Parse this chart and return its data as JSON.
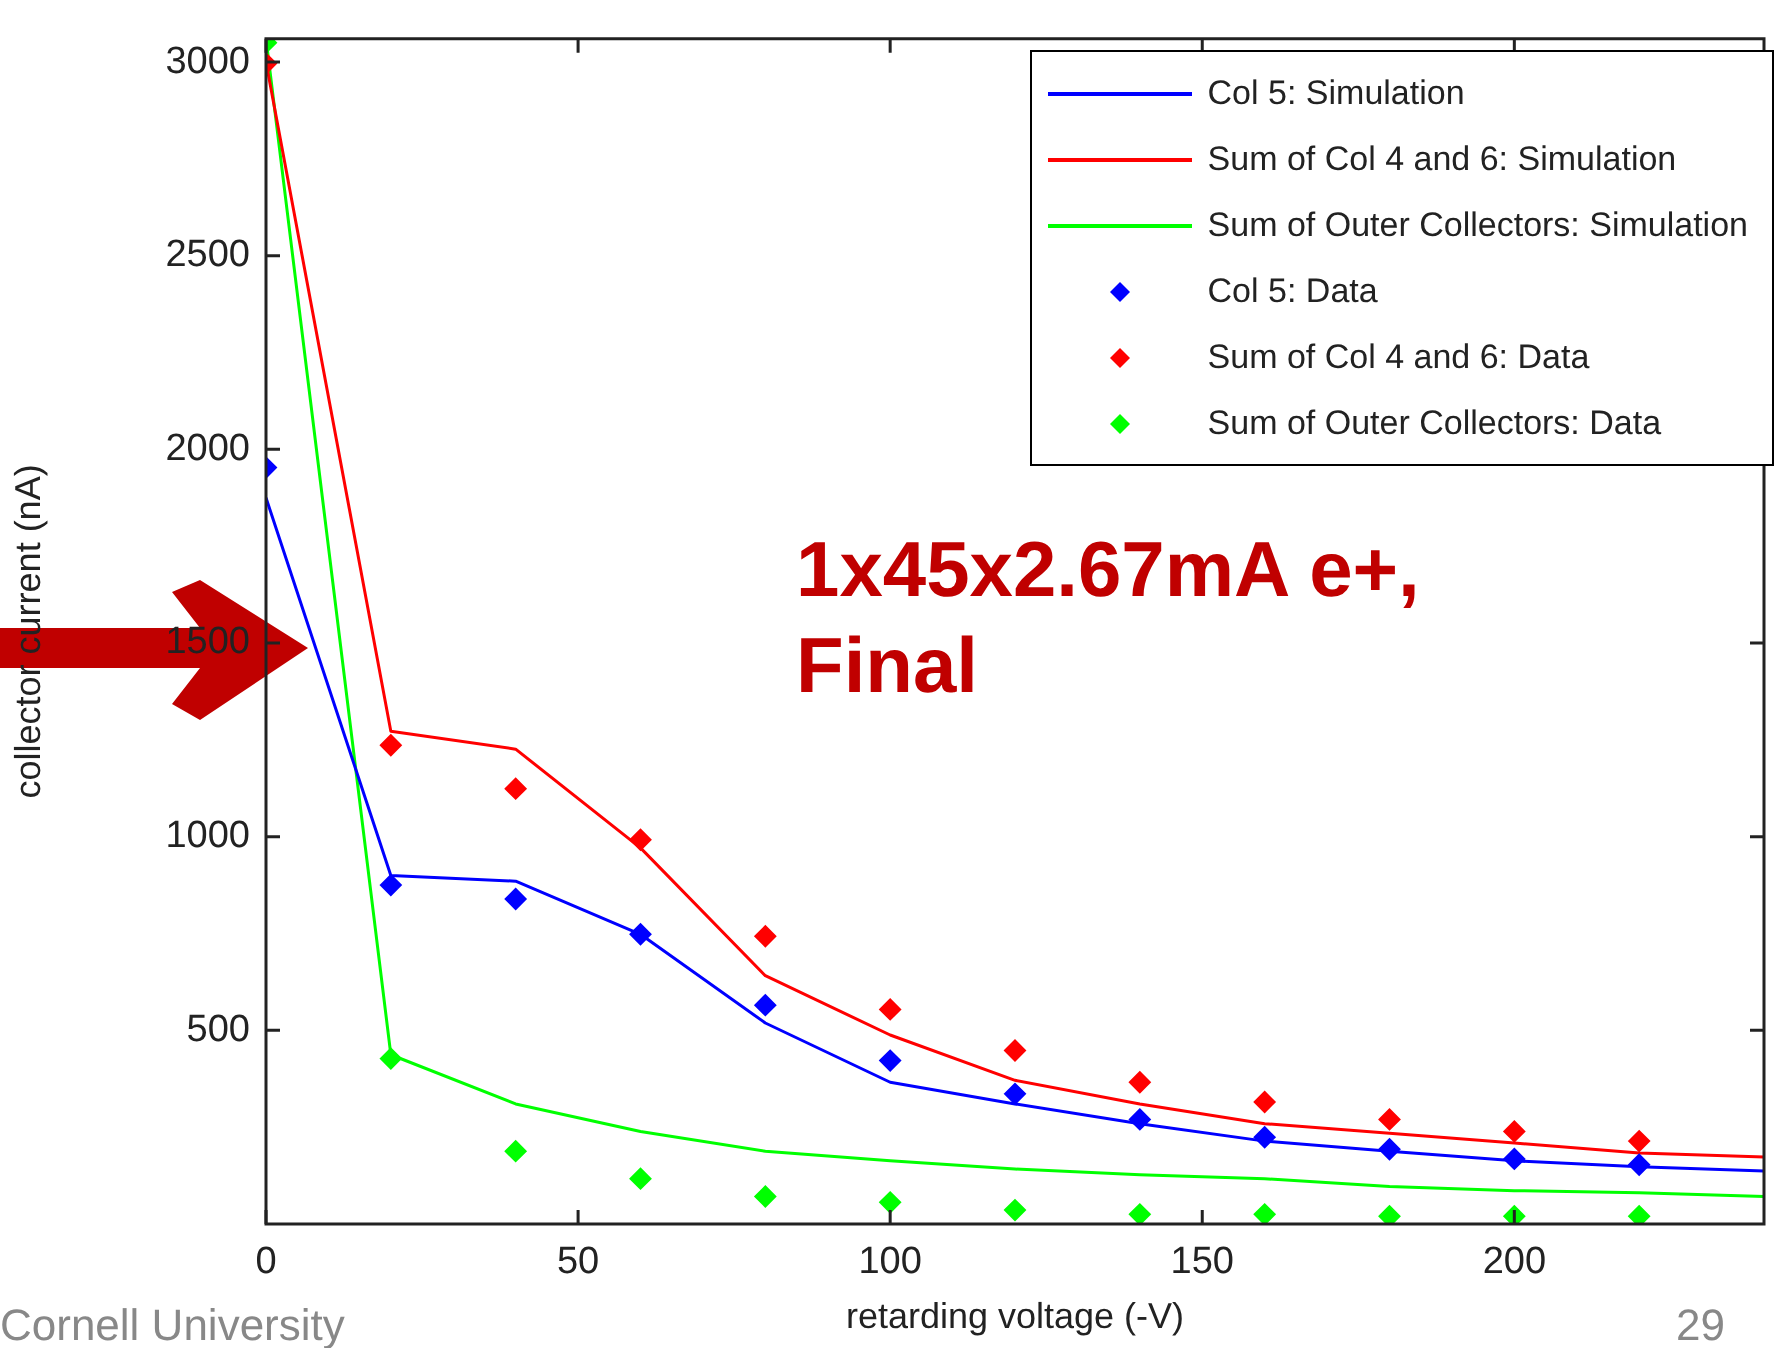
{
  "chart_data": {
    "type": "scatter",
    "xlabel": "retarding voltage (-V)",
    "ylabel": "collector current (nA)",
    "x": [
      0,
      20,
      40,
      60,
      80,
      100,
      120,
      140,
      160,
      180,
      200,
      220
    ],
    "series": [
      {
        "name": "Col 5: Simulation",
        "type": "line",
        "marker": "none",
        "color": "#0000ff",
        "x": [
          0,
          20,
          40,
          60,
          80,
          100,
          120,
          140,
          160,
          180,
          200,
          220,
          240
        ],
        "values": [
          1875,
          900,
          885,
          748,
          519,
          366,
          310,
          259,
          214,
          188,
          163,
          148,
          137
        ]
      },
      {
        "name": "Sum of Col 4 and 6: Simulation",
        "type": "line",
        "marker": "none",
        "color": "#ff0000",
        "x": [
          0,
          20,
          40,
          60,
          80,
          100,
          120,
          140,
          160,
          180,
          200,
          220,
          240
        ],
        "values": [
          3000,
          1272,
          1226,
          971,
          641,
          488,
          371,
          310,
          259,
          234,
          209,
          183,
          173
        ]
      },
      {
        "name": "Sum of Outer Collectors: Simulation",
        "type": "line",
        "marker": "none",
        "color": "#00ff00",
        "x": [
          0,
          20,
          40,
          60,
          80,
          100,
          120,
          140,
          160,
          180,
          200,
          220,
          240
        ],
        "values": [
          3060,
          437,
          310,
          239,
          188,
          163,
          142,
          127,
          117,
          97,
          86,
          81,
          71
        ]
      },
      {
        "name": "Col 5: Data",
        "marker": "diamond",
        "color": "#0000ff",
        "values": [
          1953,
          875,
          839,
          748,
          565,
          422,
          336,
          270,
          224,
          193,
          168,
          153
        ]
      },
      {
        "name": "Sum of Col 4 and 6: Data",
        "marker": "diamond",
        "color": "#ff0000",
        "values": [
          2996,
          1236,
          1124,
          992,
          743,
          554,
          448,
          366,
          315,
          270,
          239,
          214
        ]
      },
      {
        "name": "Sum of Outer Collectors: Data",
        "marker": "diamond",
        "color": "#00ff00",
        "values": [
          3050,
          427,
          188,
          117,
          71,
          56,
          36,
          25,
          25,
          20,
          20,
          20
        ]
      }
    ],
    "xlim": [
      0,
      240
    ],
    "xticks": [
      0,
      50,
      100,
      150,
      200
    ],
    "ylim": [
      0,
      3060
    ],
    "yticks": [
      500,
      1000,
      1500,
      2000,
      2500,
      3000
    ],
    "legend": "top right",
    "grid": false,
    "annotations": [
      "1x45x2.67mA e+, Final",
      "Cornell University",
      "29"
    ]
  }
}
